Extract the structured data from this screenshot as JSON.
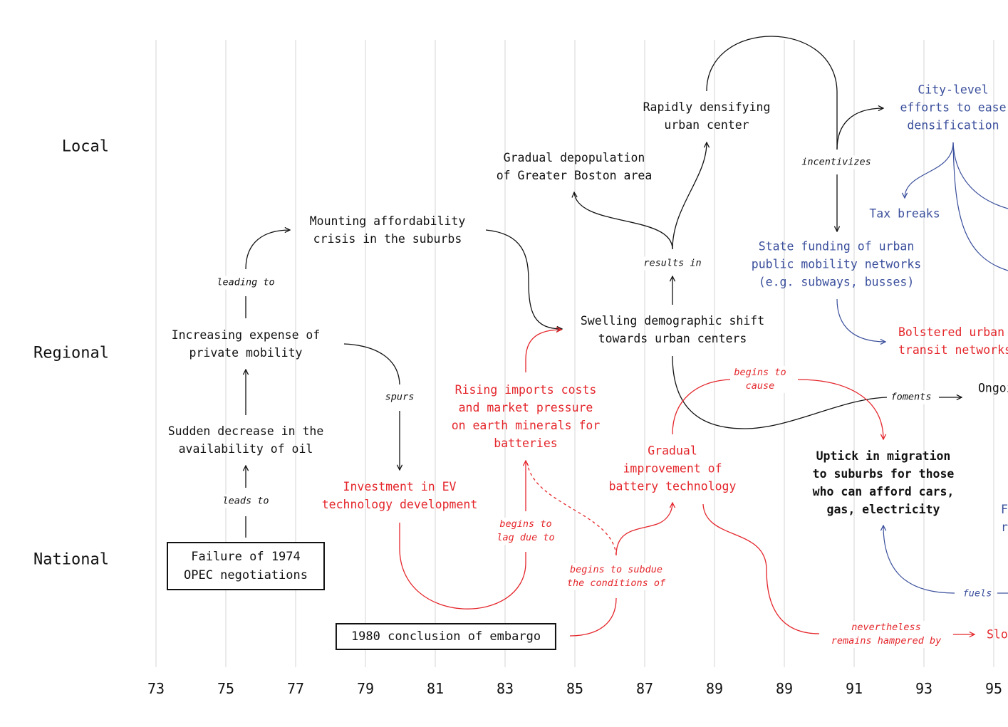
{
  "levels": {
    "local": "Local",
    "regional": "Regional",
    "national": "National"
  },
  "years": [
    "73",
    "75",
    "77",
    "79",
    "81",
    "83",
    "85",
    "87",
    "89",
    "89",
    "91",
    "93",
    "95"
  ],
  "nodes": {
    "opec": "Failure of 1974\nOPEC negotiations",
    "oil": "Sudden decrease in the\navailability of oil",
    "expense": "Increasing expense of\nprivate mobility",
    "affordability": "Mounting affordability\ncrisis in the suburbs",
    "investment_ev": "Investment in EV\ntechnology development",
    "rising_imports": "Rising imports costs\nand market pressure\non earth minerals for\nbatteries",
    "embargo": "1980 conclusion of embargo",
    "depopulation": "Gradual depopulation\nof Greater Boston area",
    "densifying": "Rapidly densifying\nurban center",
    "demographic": "Swelling demographic shift\ntowards urban centers",
    "battery": "Gradual\nimprovement of\nbattery technology",
    "city_level": "City-level\nefforts to ease\ndensification",
    "tax_breaks": "Tax breaks",
    "state_funding": "State funding of urban\npublic mobility networks\n(e.g. subways, busses)",
    "bolstered": "Bolstered urban\ntransit networks",
    "ongoing": "Ongoing",
    "uptick": "Uptick in migration\nto suburbs for those\nwho can afford cars,\ngas, electricity",
    "right_blue": "F\nr",
    "slow": "Slow"
  },
  "labels": {
    "leads_to": "leads to",
    "leading_to": "leading to",
    "spurs": "spurs",
    "begins_to_lag": "begins to\nlag due to",
    "begins_to_subdue": "begins to subdue\nthe conditions of",
    "results_in": "results in",
    "incentivizes": "incentivizes",
    "begins_to_cause": "begins to\ncause",
    "foments": "foments",
    "fuels": "fuels",
    "nevertheless": "nevertheless\nremains hampered by"
  },
  "colors": {
    "black": "#111111",
    "red": "#e4262b",
    "blue": "#3a4f9c",
    "grid": "#d6d6d6"
  }
}
